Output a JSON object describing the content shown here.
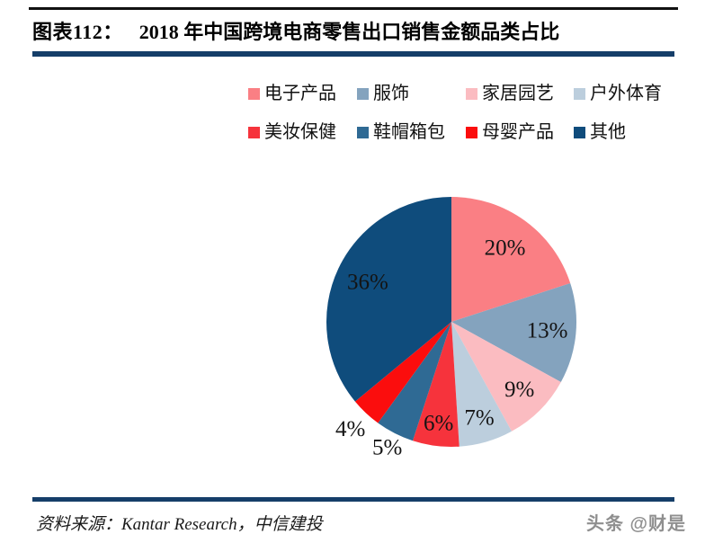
{
  "header": {
    "figure_label": "图表112：",
    "title": "2018 年中国跨境电商零售出口销售金额品类占比"
  },
  "footer": {
    "source": "资料来源：Kantar Research，中信建投",
    "watermark": "头条 @财是"
  },
  "chart_data": {
    "type": "pie",
    "title": "2018 年中国跨境电商零售出口销售金额品类占比",
    "categories": [
      "电子产品",
      "服饰",
      "家居园艺",
      "户外体育",
      "美妆保健",
      "鞋帽箱包",
      "母婴产品",
      "其他"
    ],
    "values": [
      20,
      13,
      9,
      7,
      6,
      5,
      4,
      36
    ],
    "values_unit": "%",
    "labels": [
      "20%",
      "13%",
      "9%",
      "7%",
      "6%",
      "5%",
      "4%",
      "36%"
    ],
    "colors": [
      "#FA7F84",
      "#84A3BE",
      "#FBBCC1",
      "#BCCEDD",
      "#F6333C",
      "#2F6A94",
      "#FB0D0D",
      "#0F4C7C"
    ],
    "start_angle_deg": 0,
    "direction": "clockwise",
    "legend_position": "top",
    "legend_columns": 4,
    "label_radius_factors": [
      0.73,
      0.77,
      0.77,
      0.8,
      0.82,
      1.13,
      1.18,
      0.74
    ]
  },
  "theme": {
    "rule_color": "#153E69",
    "top_rule_color": "#111111",
    "text_color": "#000000",
    "watermark_color": "#8F8F8F",
    "background": "#FFFFFF"
  }
}
